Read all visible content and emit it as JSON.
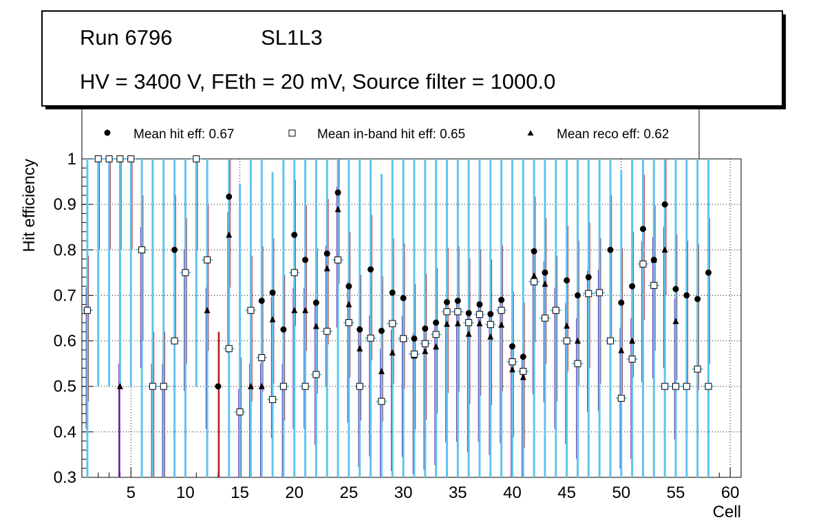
{
  "header": {
    "run_label": "Run 6796",
    "layer_label": "SL1L3",
    "conditions": "HV = 3400 V, FEth = 20 mV, Source filter = 1000.0"
  },
  "legend": {
    "hit": "Mean hit  eff: 0.67",
    "inband": "Mean in-band hit eff: 0.65",
    "reco": "Mean reco eff: 0.62"
  },
  "colors": {
    "hit_err": "#b31919",
    "inband_err": "#5fc4f0",
    "reco_err": "#6a0fa0",
    "marker": "#000000",
    "grid": "#000000"
  },
  "chart_data": {
    "type": "scatter",
    "xlabel": "Cell",
    "ylabel": "Hit efficiency",
    "xlim": [
      0.5,
      61
    ],
    "ylim": [
      0.3,
      1.0
    ],
    "xticks": [
      5,
      10,
      15,
      20,
      25,
      30,
      35,
      40,
      45,
      50,
      55,
      60
    ],
    "yticks": [
      0.3,
      0.4,
      0.5,
      0.6,
      0.7,
      0.8,
      0.9,
      1
    ],
    "grid": true,
    "legend_position": "top",
    "series": [
      {
        "name": "Mean hit  eff: 0.67",
        "marker": "circle",
        "points": [
          {
            "x": 1,
            "y": 0.667
          },
          {
            "x": 2,
            "y": 1.0
          },
          {
            "x": 3,
            "y": 1.0
          },
          {
            "x": 4,
            "y": 1.0
          },
          {
            "x": 5,
            "y": 1.0
          },
          {
            "x": 6,
            "y": 0.8
          },
          {
            "x": 7,
            "y": 0.5
          },
          {
            "x": 8,
            "y": 0.5
          },
          {
            "x": 9,
            "y": 0.8
          },
          {
            "x": 10,
            "y": 0.75
          },
          {
            "x": 11,
            "y": 1.0
          },
          {
            "x": 12,
            "y": 0.778
          },
          {
            "x": 13,
            "y": 0.5
          },
          {
            "x": 14,
            "y": 0.917
          },
          {
            "x": 15,
            "y": 0.444
          },
          {
            "x": 16,
            "y": 0.667
          },
          {
            "x": 17,
            "y": 0.688
          },
          {
            "x": 18,
            "y": 0.706
          },
          {
            "x": 19,
            "y": 0.625
          },
          {
            "x": 20,
            "y": 0.833
          },
          {
            "x": 21,
            "y": 0.778
          },
          {
            "x": 22,
            "y": 0.684
          },
          {
            "x": 23,
            "y": 0.792
          },
          {
            "x": 24,
            "y": 0.926
          },
          {
            "x": 25,
            "y": 0.72
          },
          {
            "x": 26,
            "y": 0.625
          },
          {
            "x": 27,
            "y": 0.757
          },
          {
            "x": 28,
            "y": 0.622
          },
          {
            "x": 29,
            "y": 0.706
          },
          {
            "x": 30,
            "y": 0.694
          },
          {
            "x": 31,
            "y": 0.605
          },
          {
            "x": 32,
            "y": 0.627
          },
          {
            "x": 33,
            "y": 0.64
          },
          {
            "x": 34,
            "y": 0.685
          },
          {
            "x": 35,
            "y": 0.688
          },
          {
            "x": 36,
            "y": 0.661
          },
          {
            "x": 37,
            "y": 0.68
          },
          {
            "x": 38,
            "y": 0.659
          },
          {
            "x": 39,
            "y": 0.69
          },
          {
            "x": 40,
            "y": 0.588
          },
          {
            "x": 41,
            "y": 0.565
          },
          {
            "x": 42,
            "y": 0.797
          },
          {
            "x": 43,
            "y": 0.75
          },
          {
            "x": 44,
            "y": 0.667
          },
          {
            "x": 45,
            "y": 0.733
          },
          {
            "x": 46,
            "y": 0.7
          },
          {
            "x": 47,
            "y": 0.74
          },
          {
            "x": 48,
            "y": 0.706
          },
          {
            "x": 49,
            "y": 0.8
          },
          {
            "x": 50,
            "y": 0.684
          },
          {
            "x": 51,
            "y": 0.72
          },
          {
            "x": 52,
            "y": 0.846
          },
          {
            "x": 53,
            "y": 0.778
          },
          {
            "x": 54,
            "y": 0.9
          },
          {
            "x": 55,
            "y": 0.714
          },
          {
            "x": 56,
            "y": 0.7
          },
          {
            "x": 57,
            "y": 0.692
          },
          {
            "x": 58,
            "y": 0.75
          }
        ]
      },
      {
        "name": "Mean in-band hit eff: 0.65",
        "marker": "open-square",
        "points": [
          {
            "x": 1,
            "y": 0.667
          },
          {
            "x": 2,
            "y": 1.0
          },
          {
            "x": 3,
            "y": 1.0
          },
          {
            "x": 4,
            "y": 1.0
          },
          {
            "x": 5,
            "y": 1.0
          },
          {
            "x": 6,
            "y": 0.8
          },
          {
            "x": 7,
            "y": 0.5
          },
          {
            "x": 8,
            "y": 0.5
          },
          {
            "x": 9,
            "y": 0.6
          },
          {
            "x": 10,
            "y": 0.75
          },
          {
            "x": 11,
            "y": 1.0
          },
          {
            "x": 12,
            "y": 0.778
          },
          {
            "x": 14,
            "y": 0.583
          },
          {
            "x": 15,
            "y": 0.444
          },
          {
            "x": 16,
            "y": 0.667
          },
          {
            "x": 17,
            "y": 0.563
          },
          {
            "x": 18,
            "y": 0.471
          },
          {
            "x": 19,
            "y": 0.5
          },
          {
            "x": 20,
            "y": 0.75
          },
          {
            "x": 21,
            "y": 0.5
          },
          {
            "x": 22,
            "y": 0.526
          },
          {
            "x": 23,
            "y": 0.621
          },
          {
            "x": 24,
            "y": 0.778
          },
          {
            "x": 25,
            "y": 0.64
          },
          {
            "x": 26,
            "y": 0.5
          },
          {
            "x": 27,
            "y": 0.606
          },
          {
            "x": 28,
            "y": 0.467
          },
          {
            "x": 29,
            "y": 0.638
          },
          {
            "x": 30,
            "y": 0.605
          },
          {
            "x": 31,
            "y": 0.571
          },
          {
            "x": 32,
            "y": 0.594
          },
          {
            "x": 33,
            "y": 0.614
          },
          {
            "x": 34,
            "y": 0.664
          },
          {
            "x": 35,
            "y": 0.664
          },
          {
            "x": 36,
            "y": 0.64
          },
          {
            "x": 37,
            "y": 0.658
          },
          {
            "x": 38,
            "y": 0.636
          },
          {
            "x": 39,
            "y": 0.667
          },
          {
            "x": 40,
            "y": 0.554
          },
          {
            "x": 41,
            "y": 0.533
          },
          {
            "x": 42,
            "y": 0.73
          },
          {
            "x": 43,
            "y": 0.65
          },
          {
            "x": 44,
            "y": 0.667
          },
          {
            "x": 45,
            "y": 0.6
          },
          {
            "x": 46,
            "y": 0.55
          },
          {
            "x": 47,
            "y": 0.704
          },
          {
            "x": 48,
            "y": 0.706
          },
          {
            "x": 49,
            "y": 0.6
          },
          {
            "x": 50,
            "y": 0.474
          },
          {
            "x": 51,
            "y": 0.56
          },
          {
            "x": 52,
            "y": 0.769
          },
          {
            "x": 53,
            "y": 0.722
          },
          {
            "x": 54,
            "y": 0.5
          },
          {
            "x": 55,
            "y": 0.5
          },
          {
            "x": 56,
            "y": 0.5
          },
          {
            "x": 57,
            "y": 0.538
          },
          {
            "x": 58,
            "y": 0.5
          }
        ]
      },
      {
        "name": "Mean reco eff: 0.62",
        "marker": "triangle",
        "points": [
          {
            "x": 1,
            "y": 0.667
          },
          {
            "x": 4,
            "y": 0.5
          },
          {
            "x": 6,
            "y": 0.8
          },
          {
            "x": 7,
            "y": 0.5
          },
          {
            "x": 8,
            "y": 0.5
          },
          {
            "x": 10,
            "y": 0.75
          },
          {
            "x": 12,
            "y": 0.667
          },
          {
            "x": 14,
            "y": 0.833
          },
          {
            "x": 15,
            "y": 0.444
          },
          {
            "x": 16,
            "y": 0.5
          },
          {
            "x": 17,
            "y": 0.5
          },
          {
            "x": 18,
            "y": 0.647
          },
          {
            "x": 19,
            "y": 0.5
          },
          {
            "x": 20,
            "y": 0.667
          },
          {
            "x": 21,
            "y": 0.667
          },
          {
            "x": 22,
            "y": 0.632
          },
          {
            "x": 23,
            "y": 0.759
          },
          {
            "x": 24,
            "y": 0.889
          },
          {
            "x": 25,
            "y": 0.68
          },
          {
            "x": 26,
            "y": 0.583
          },
          {
            "x": 27,
            "y": 0.606
          },
          {
            "x": 28,
            "y": 0.533
          },
          {
            "x": 29,
            "y": 0.574
          },
          {
            "x": 30,
            "y": 0.605
          },
          {
            "x": 31,
            "y": 0.567
          },
          {
            "x": 32,
            "y": 0.577
          },
          {
            "x": 33,
            "y": 0.587
          },
          {
            "x": 34,
            "y": 0.637
          },
          {
            "x": 35,
            "y": 0.638
          },
          {
            "x": 36,
            "y": 0.615
          },
          {
            "x": 37,
            "y": 0.638
          },
          {
            "x": 38,
            "y": 0.609
          },
          {
            "x": 39,
            "y": 0.635
          },
          {
            "x": 40,
            "y": 0.537
          },
          {
            "x": 41,
            "y": 0.52
          },
          {
            "x": 42,
            "y": 0.743
          },
          {
            "x": 43,
            "y": 0.725
          },
          {
            "x": 44,
            "y": 0.667
          },
          {
            "x": 45,
            "y": 0.633
          },
          {
            "x": 46,
            "y": 0.6
          },
          {
            "x": 47,
            "y": 0.704
          },
          {
            "x": 48,
            "y": 0.706
          },
          {
            "x": 50,
            "y": 0.579
          },
          {
            "x": 51,
            "y": 0.6
          },
          {
            "x": 52,
            "y": 0.769
          },
          {
            "x": 53,
            "y": 0.778
          },
          {
            "x": 54,
            "y": 0.8
          },
          {
            "x": 55,
            "y": 0.643
          }
        ]
      }
    ]
  }
}
